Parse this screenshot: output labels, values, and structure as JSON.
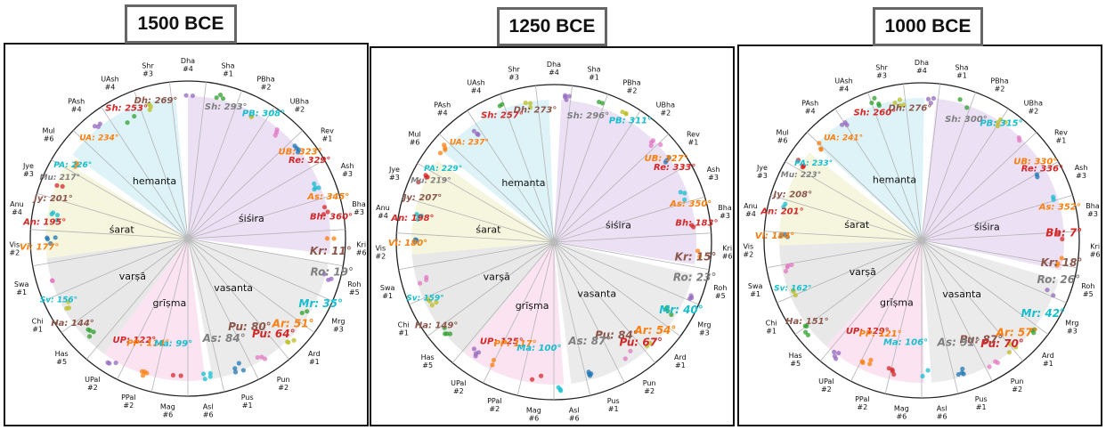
{
  "panels": [
    {
      "title": "1500 BCE",
      "labels": [
        {
          "abbr": "Dh",
          "deg": "269°",
          "color": "#8c564b"
        },
        {
          "abbr": "Sh",
          "deg": "253°",
          "color": "#d62728"
        },
        {
          "abbr": "Sh",
          "deg": "293°",
          "color": "#7f7f7f"
        },
        {
          "abbr": "PB",
          "deg": "308°",
          "color": "#17becf"
        },
        {
          "abbr": "UA",
          "deg": "234°",
          "color": "#ff7f0e"
        },
        {
          "abbr": "UB",
          "deg": "323°",
          "color": "#ff7f0e"
        },
        {
          "abbr": "Re",
          "deg": "329°",
          "color": "#d62728"
        },
        {
          "abbr": "PA",
          "deg": "226°",
          "color": "#17becf"
        },
        {
          "abbr": "Mu",
          "deg": "217°",
          "color": "#7f7f7f"
        },
        {
          "abbr": "Jy",
          "deg": "201°",
          "color": "#8c564b"
        },
        {
          "abbr": "As",
          "deg": "345°",
          "color": "#ff7f0e"
        },
        {
          "abbr": "An",
          "deg": "195°",
          "color": "#d62728"
        },
        {
          "abbr": "Bh",
          "deg": "360°",
          "color": "#d62728"
        },
        {
          "abbr": "Kr",
          "deg": "11°",
          "color": "#8c564b"
        },
        {
          "abbr": "Vi",
          "deg": "177°",
          "color": "#ff7f0e"
        },
        {
          "abbr": "Ro",
          "deg": "19°",
          "color": "#7f7f7f"
        },
        {
          "abbr": "Sv",
          "deg": "156°",
          "color": "#17becf"
        },
        {
          "abbr": "Mr",
          "deg": "35°",
          "color": "#17becf"
        },
        {
          "abbr": "Ha",
          "deg": "144°",
          "color": "#8c564b"
        },
        {
          "abbr": "Pu",
          "deg": "80°",
          "color": "#8c564b"
        },
        {
          "abbr": "Ar",
          "deg": "51°",
          "color": "#ff7f0e"
        },
        {
          "abbr": "Pu",
          "deg": "64°",
          "color": "#d62728"
        },
        {
          "abbr": "UP",
          "deg": "122°",
          "color": "#d62728"
        },
        {
          "abbr": "PP",
          "deg": "114°",
          "color": "#ff7f0e"
        },
        {
          "abbr": "Ma",
          "deg": "99°",
          "color": "#17becf"
        },
        {
          "abbr": "As",
          "deg": "84°",
          "color": "#7f7f7f"
        }
      ]
    },
    {
      "title": "1250 BCE",
      "labels": [
        {
          "abbr": "Dh",
          "deg": "273°",
          "color": "#8c564b"
        },
        {
          "abbr": "Sh",
          "deg": "257°",
          "color": "#d62728"
        },
        {
          "abbr": "Sh",
          "deg": "296°",
          "color": "#7f7f7f"
        },
        {
          "abbr": "PB",
          "deg": "311°",
          "color": "#17becf"
        },
        {
          "abbr": "UA",
          "deg": "237°",
          "color": "#ff7f0e"
        },
        {
          "abbr": "UB",
          "deg": "327°",
          "color": "#ff7f0e"
        },
        {
          "abbr": "Re",
          "deg": "333°",
          "color": "#d62728"
        },
        {
          "abbr": "PA",
          "deg": "229°",
          "color": "#17becf"
        },
        {
          "abbr": "Mu",
          "deg": "219°",
          "color": "#7f7f7f"
        },
        {
          "abbr": "Jy",
          "deg": "207°",
          "color": "#8c564b"
        },
        {
          "abbr": "As",
          "deg": "350°",
          "color": "#ff7f0e"
        },
        {
          "abbr": "An",
          "deg": "198°",
          "color": "#d62728"
        },
        {
          "abbr": "Bh",
          "deg": "183°",
          "color": "#d62728"
        },
        {
          "abbr": "Kr",
          "deg": "15°",
          "color": "#8c564b"
        },
        {
          "abbr": "Vi",
          "deg": "180°",
          "color": "#ff7f0e"
        },
        {
          "abbr": "Ro",
          "deg": "23°",
          "color": "#7f7f7f"
        },
        {
          "abbr": "Sv",
          "deg": "159°",
          "color": "#17becf"
        },
        {
          "abbr": "Mr",
          "deg": "40°",
          "color": "#17becf"
        },
        {
          "abbr": "Ha",
          "deg": "149°",
          "color": "#8c564b"
        },
        {
          "abbr": "Pu",
          "deg": "84°",
          "color": "#8c564b"
        },
        {
          "abbr": "Ar",
          "deg": "54°",
          "color": "#ff7f0e"
        },
        {
          "abbr": "Pu",
          "deg": "67°",
          "color": "#d62728"
        },
        {
          "abbr": "UP",
          "deg": "125°",
          "color": "#d62728"
        },
        {
          "abbr": "PP",
          "deg": "117°",
          "color": "#ff7f0e"
        },
        {
          "abbr": "Ma",
          "deg": "100°",
          "color": "#17becf"
        },
        {
          "abbr": "As",
          "deg": "87°",
          "color": "#7f7f7f"
        }
      ]
    },
    {
      "title": "1000 BCE",
      "labels": [
        {
          "abbr": "Dh",
          "deg": "276°",
          "color": "#8c564b"
        },
        {
          "abbr": "Sh",
          "deg": "260°",
          "color": "#d62728"
        },
        {
          "abbr": "Sh",
          "deg": "300°",
          "color": "#7f7f7f"
        },
        {
          "abbr": "PB",
          "deg": "315°",
          "color": "#17becf"
        },
        {
          "abbr": "UA",
          "deg": "241°",
          "color": "#ff7f0e"
        },
        {
          "abbr": "UB",
          "deg": "330°",
          "color": "#ff7f0e"
        },
        {
          "abbr": "Re",
          "deg": "336°",
          "color": "#d62728"
        },
        {
          "abbr": "PA",
          "deg": "233°",
          "color": "#17becf"
        },
        {
          "abbr": "Mu",
          "deg": "223°",
          "color": "#7f7f7f"
        },
        {
          "abbr": "Jy",
          "deg": "208°",
          "color": "#8c564b"
        },
        {
          "abbr": "As",
          "deg": "352°",
          "color": "#ff7f0e"
        },
        {
          "abbr": "An",
          "deg": "201°",
          "color": "#d62728"
        },
        {
          "abbr": "Bh",
          "deg": "7°",
          "color": "#d62728"
        },
        {
          "abbr": "Kr",
          "deg": "18°",
          "color": "#8c564b"
        },
        {
          "abbr": "Vi",
          "deg": "184°",
          "color": "#ff7f0e"
        },
        {
          "abbr": "Ro",
          "deg": "26°",
          "color": "#7f7f7f"
        },
        {
          "abbr": "Sv",
          "deg": "162°",
          "color": "#17becf"
        },
        {
          "abbr": "Mr",
          "deg": "42°",
          "color": "#17becf"
        },
        {
          "abbr": "Ha",
          "deg": "151°",
          "color": "#8c564b"
        },
        {
          "abbr": "Pu",
          "deg": "87°",
          "color": "#8c564b"
        },
        {
          "abbr": "Ar",
          "deg": "57°",
          "color": "#ff7f0e"
        },
        {
          "abbr": "Pu",
          "deg": "70°",
          "color": "#d62728"
        },
        {
          "abbr": "UP",
          "deg": "129°",
          "color": "#d62728"
        },
        {
          "abbr": "PP",
          "deg": "121°",
          "color": "#ff7f0e"
        },
        {
          "abbr": "Ma",
          "deg": "106°",
          "color": "#17becf"
        },
        {
          "abbr": "As",
          "deg": "91°",
          "color": "#7f7f7f"
        }
      ]
    }
  ],
  "nakshatras": [
    {
      "name": "Dha",
      "num": "#4"
    },
    {
      "name": "Sha",
      "num": "#1"
    },
    {
      "name": "PBha",
      "num": "#2"
    },
    {
      "name": "UBha",
      "num": "#2"
    },
    {
      "name": "Rev",
      "num": "#1"
    },
    {
      "name": "Ash",
      "num": "#3"
    },
    {
      "name": "Bha",
      "num": "#3"
    },
    {
      "name": "Kri",
      "num": "#6"
    },
    {
      "name": "Roh",
      "num": "#5"
    },
    {
      "name": "Mrg",
      "num": "#3"
    },
    {
      "name": "Ard",
      "num": "#1"
    },
    {
      "name": "Pun",
      "num": "#2"
    },
    {
      "name": "Pus",
      "num": "#1"
    },
    {
      "name": "Asl",
      "num": "#6"
    },
    {
      "name": "Mag",
      "num": "#6"
    },
    {
      "name": "PPal",
      "num": "#2"
    },
    {
      "name": "UPal",
      "num": "#2"
    },
    {
      "name": "Has",
      "num": "#5"
    },
    {
      "name": "Chi",
      "num": "#1"
    },
    {
      "name": "Swa",
      "num": "#1"
    },
    {
      "name": "Vis",
      "num": "#2"
    },
    {
      "name": "Anu",
      "num": "#4"
    },
    {
      "name": "Jye",
      "num": "#3"
    },
    {
      "name": "Mul",
      "num": "#6"
    },
    {
      "name": "PAsh",
      "num": "#4"
    },
    {
      "name": "UAsh",
      "num": "#4"
    },
    {
      "name": "Shr",
      "num": "#3"
    }
  ],
  "seasons": [
    {
      "name": "śiśira",
      "color": "#ece0f5"
    },
    {
      "name": "vasanta",
      "color": "#ebebeb"
    },
    {
      "name": "grīṣma",
      "color": "#fbe3f1"
    },
    {
      "name": "varṣā",
      "color": "#e8e8e8"
    },
    {
      "name": "śarat",
      "color": "#f6f6df"
    },
    {
      "name": "hemanta",
      "color": "#ddf3f8"
    }
  ],
  "dot_colors": [
    "#9467bd",
    "#2ca02c",
    "#bcbd22",
    "#e377c2",
    "#1f77b4",
    "#17becf",
    "#d62728",
    "#ff7f0e"
  ]
}
